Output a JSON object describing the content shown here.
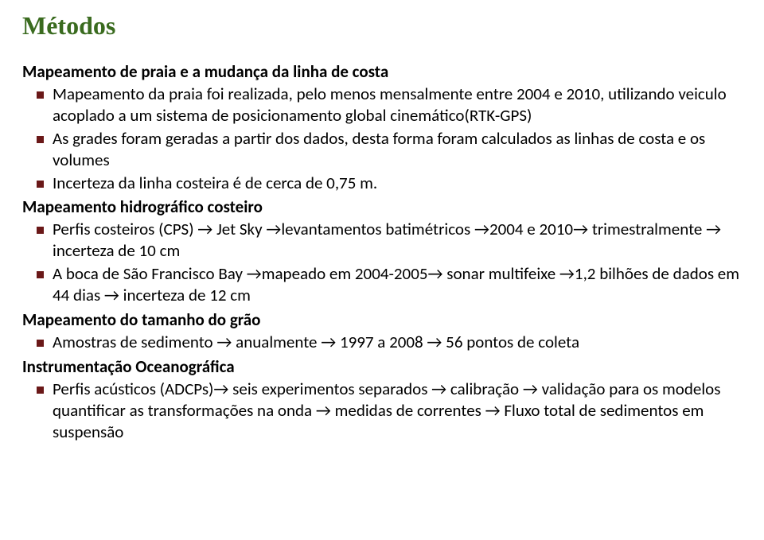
{
  "title": "Métodos",
  "styles": {
    "title_color": "#3a6b1f",
    "title_fontsize": 32,
    "title_font": "Times New Roman",
    "body_fontsize": 21,
    "bullet_color": "#6a1818",
    "bullet_size": 9,
    "background": "#ffffff",
    "text_color": "#000000"
  },
  "sections": {
    "s1": {
      "heading": "Mapeamento de praia e a mudança da linha de costa",
      "b1": "Mapeamento da praia foi realizada, pelo menos mensalmente entre 2004 e 2010, utilizando veiculo acoplado a um sistema de posicionamento global cinemático(RTK-GPS)",
      "b2": "As grades foram geradas a partir dos dados, desta forma foram calculados as linhas de costa e os volumes",
      "b3": "Incerteza da linha costeira é de cerca de 0,75 m."
    },
    "s2": {
      "heading": "Mapeamento hidrográfico costeiro",
      "b1": "Perfis costeiros (CPS) → Jet Sky →levantamentos batimétricos →2004 e 2010→ trimestralmente → incerteza de 10 cm",
      "b2": "A boca de São Francisco Bay →mapeado em  2004-2005→ sonar multifeixe →1,2 bilhões de dados em 44 dias → incerteza de 12 cm"
    },
    "s3": {
      "heading": "Mapeamento do tamanho do grão",
      "b1": "Amostras de sedimento → anualmente → 1997 a 2008 → 56 pontos de coleta"
    },
    "s4": {
      "heading": "Instrumentação Oceanográfica",
      "b1": "Perfis acústicos (ADCPs)→ seis experimentos separados → calibração → validação para os modelos quantificar as transformações na onda → medidas de correntes → Fluxo total de sedimentos em suspensão"
    }
  }
}
